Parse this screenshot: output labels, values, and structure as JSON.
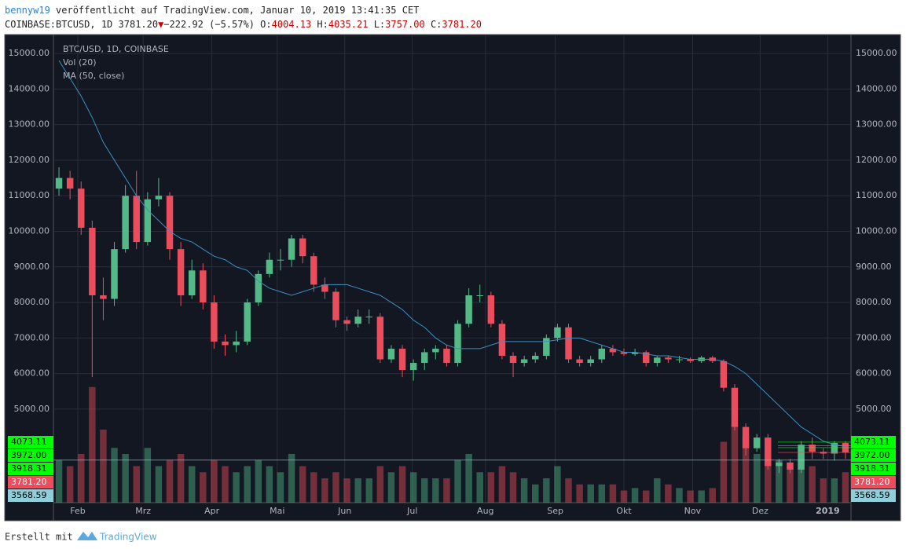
{
  "header": {
    "author": "bennyw19",
    "published": "veröffentlicht auf TradingView.com, Januar 10, 2019 13:41:35 CET",
    "symbol": "COINBASE:BTCUSD, 1D",
    "last": "3781.20",
    "change": "−222.92 (−5.57%)",
    "o_label": "O:",
    "o": "4004.13",
    "h_label": "H:",
    "h": "4035.21",
    "l_label": "L:",
    "l": "3757.00",
    "c_label": "C:",
    "c": "3781.20"
  },
  "chart_data": {
    "type": "candlestick",
    "legend": [
      "BTC/USD, 1D, COINBASE",
      "Vol (20)",
      "MA (50, close)"
    ],
    "up_color": "#53b987",
    "down_color": "#eb4d5c",
    "ma_color": "#3d8fbd",
    "open": [
      11200,
      11500,
      11200,
      10100,
      8200,
      8100,
      9500,
      11000,
      9700,
      10900,
      11000,
      9500,
      8200,
      8900,
      8000,
      6900,
      6800,
      6900,
      8000,
      8800,
      9200,
      9200,
      9800,
      9300,
      8500,
      8300,
      7500,
      7400,
      7600,
      7600,
      6400,
      6700,
      6100,
      6300,
      6600,
      6700,
      6300,
      7400,
      8200,
      8200,
      7400,
      6500,
      6300,
      6400,
      6500,
      7000,
      7300,
      6400,
      6300,
      6400,
      6700,
      6600,
      6550,
      6600,
      6300,
      6450,
      6400,
      6400,
      6350,
      6450,
      6350,
      5600,
      4500,
      3900,
      4200,
      3400,
      3500,
      3300,
      4000,
      3800,
      3750,
      4050
    ],
    "high": [
      11800,
      11700,
      11400,
      10300,
      8700,
      9700,
      11300,
      11700,
      11100,
      11500,
      11100,
      9700,
      9200,
      9100,
      8200,
      7100,
      7200,
      8100,
      8900,
      9400,
      9500,
      9900,
      9900,
      9400,
      8700,
      8400,
      7600,
      7800,
      7800,
      7700,
      6800,
      6800,
      6400,
      6700,
      6800,
      6800,
      7500,
      8400,
      8500,
      8300,
      7500,
      6600,
      6500,
      6600,
      7100,
      7400,
      7400,
      6500,
      6500,
      6800,
      6800,
      6700,
      6700,
      6650,
      6500,
      6500,
      6500,
      6450,
      6500,
      6500,
      6400,
      5700,
      4600,
      4300,
      4300,
      3600,
      3600,
      4100,
      4200,
      3900,
      4100,
      4100
    ],
    "low": [
      11000,
      10900,
      9900,
      5900,
      7500,
      7900,
      9400,
      9500,
      9600,
      10700,
      9200,
      7900,
      8100,
      7800,
      6700,
      6500,
      6600,
      6800,
      7900,
      8700,
      8900,
      9000,
      9100,
      8300,
      8100,
      7300,
      7200,
      7300,
      7400,
      6300,
      6300,
      5900,
      5800,
      6100,
      6400,
      6200,
      6200,
      7300,
      8000,
      7300,
      6400,
      5900,
      6200,
      6300,
      6400,
      6900,
      6300,
      6200,
      6200,
      6300,
      6500,
      6500,
      6500,
      6200,
      6200,
      6300,
      6300,
      6300,
      6300,
      6300,
      5500,
      4400,
      3700,
      3800,
      3300,
      3200,
      3200,
      3200,
      3600,
      3600,
      3550,
      3600
    ],
    "close": [
      11500,
      11200,
      10100,
      8200,
      8100,
      9500,
      11000,
      9700,
      10900,
      11000,
      9500,
      8200,
      8900,
      8000,
      6900,
      6800,
      6900,
      8000,
      8800,
      9200,
      9200,
      9800,
      9300,
      8500,
      8300,
      7500,
      7400,
      7600,
      7600,
      6400,
      6700,
      6100,
      6300,
      6600,
      6700,
      6300,
      7400,
      8200,
      8200,
      7400,
      6500,
      6300,
      6400,
      6500,
      7000,
      7300,
      6400,
      6300,
      6400,
      6700,
      6600,
      6550,
      6600,
      6300,
      6450,
      6400,
      6400,
      6350,
      6450,
      6350,
      5600,
      4500,
      3900,
      4200,
      3400,
      3500,
      3300,
      4000,
      3800,
      3750,
      4050,
      3781.2
    ],
    "volume": [
      35,
      30,
      40,
      95,
      60,
      45,
      40,
      30,
      45,
      30,
      35,
      40,
      30,
      25,
      35,
      30,
      25,
      30,
      35,
      30,
      25,
      40,
      30,
      25,
      20,
      25,
      20,
      20,
      20,
      30,
      25,
      30,
      25,
      20,
      20,
      20,
      35,
      40,
      25,
      25,
      30,
      25,
      20,
      15,
      20,
      30,
      20,
      15,
      15,
      15,
      15,
      10,
      12,
      10,
      20,
      15,
      12,
      10,
      10,
      12,
      50,
      65,
      55,
      40,
      45,
      35,
      30,
      45,
      30,
      20,
      20,
      25
    ],
    "vlim": [
      0,
      100
    ],
    "ma": [
      14800,
      14300,
      13800,
      13200,
      12500,
      12000,
      11500,
      11000,
      10600,
      10300,
      10000,
      9800,
      9700,
      9500,
      9300,
      9200,
      9000,
      8900,
      8600,
      8400,
      8300,
      8200,
      8300,
      8400,
      8500,
      8500,
      8500,
      8400,
      8300,
      8200,
      8000,
      7800,
      7500,
      7300,
      7000,
      6800,
      6700,
      6700,
      6700,
      6800,
      6900,
      6900,
      6900,
      6900,
      6900,
      6950,
      7000,
      7000,
      6900,
      6800,
      6700,
      6600,
      6600,
      6550,
      6500,
      6500,
      6450,
      6400,
      6400,
      6400,
      6350,
      6200,
      6000,
      5700,
      5400,
      5100,
      4800,
      4500,
      4300,
      4100,
      4000,
      3950
    ],
    "xlim": [
      0,
      72
    ],
    "xticks": [
      {
        "value": 2.2,
        "label": "Feb"
      },
      {
        "value": 8.1,
        "label": "Mrz"
      },
      {
        "value": 14.3,
        "label": "Apr"
      },
      {
        "value": 20.2,
        "label": "Mai"
      },
      {
        "value": 26.3,
        "label": "Jun"
      },
      {
        "value": 32.4,
        "label": "Jul"
      },
      {
        "value": 39,
        "label": "Aug"
      },
      {
        "value": 45.3,
        "label": "Sep"
      },
      {
        "value": 51.5,
        "label": "Okt"
      },
      {
        "value": 57.7,
        "label": "Nov"
      },
      {
        "value": 63.8,
        "label": "Dez"
      },
      {
        "value": 69.9,
        "label": "2019"
      }
    ],
    "ylim": [
      2370,
      15510
    ],
    "yticks": [
      {
        "value": 5000,
        "label": "5000.00"
      },
      {
        "value": 6000,
        "label": "6000.00"
      },
      {
        "value": 7000,
        "label": "7000.00"
      },
      {
        "value": 8000,
        "label": "8000.00"
      },
      {
        "value": 9000,
        "label": "9000.00"
      },
      {
        "value": 10000,
        "label": "10000.00"
      },
      {
        "value": 11000,
        "label": "11000.00"
      },
      {
        "value": 12000,
        "label": "12000.00"
      },
      {
        "value": 13000,
        "label": "13000.00"
      },
      {
        "value": 14000,
        "label": "14000.00"
      },
      {
        "value": 15000,
        "label": "15000.00"
      }
    ],
    "grid": true,
    "price_labels": [
      {
        "value": 4073.11,
        "label": "4073.11",
        "color": "#00ff00"
      },
      {
        "value": 3972,
        "label": "3972.00",
        "color": "#00ff00"
      },
      {
        "value": 3918.31,
        "label": "3918.31",
        "color": "#00ff00"
      },
      {
        "value": 3781.2,
        "label": "3781.20",
        "color": "#eb4d5c"
      },
      {
        "value": 3568.59,
        "label": "3568.59",
        "color": "#8fcfdc"
      }
    ]
  },
  "footer": {
    "made_with": "Erstellt mit",
    "brand": "TradingView"
  }
}
